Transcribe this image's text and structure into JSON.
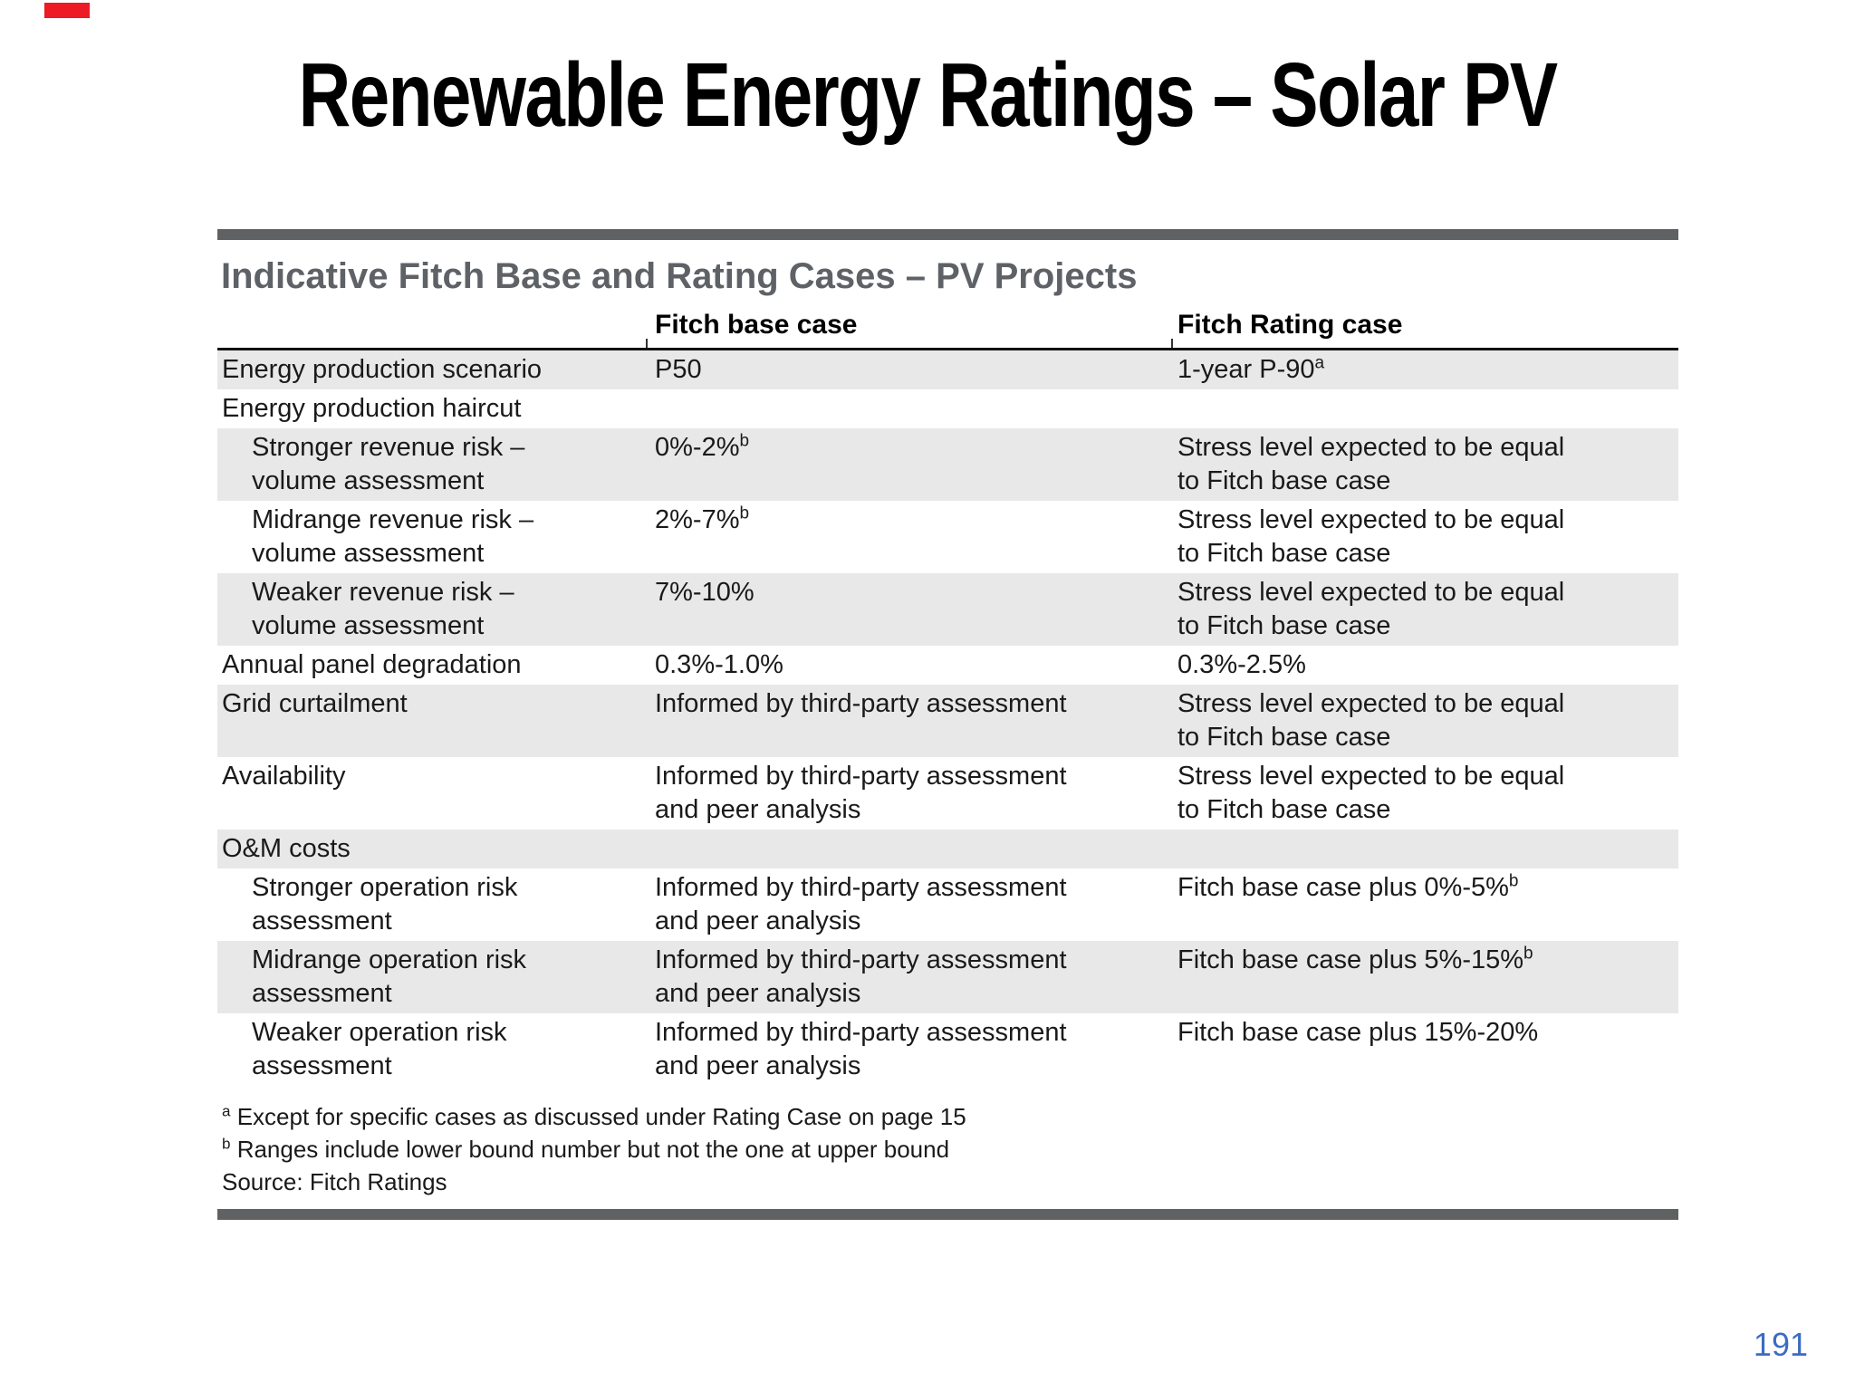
{
  "slide": {
    "title": "Renewable Energy Ratings – Solar PV",
    "page_number": "191"
  },
  "table": {
    "title": "Indicative Fitch Base and Rating Cases – PV Projects",
    "columns": [
      "",
      "Fitch base case",
      "Fitch Rating case"
    ],
    "rows": [
      {
        "label": "Energy production scenario",
        "indent": false,
        "shaded": true,
        "base": "P50",
        "base_sup": "",
        "rating": "1-year P-90",
        "rating_sup": "a"
      },
      {
        "label": "Energy production haircut",
        "indent": false,
        "shaded": false,
        "base": "",
        "base_sup": "",
        "rating": "",
        "rating_sup": ""
      },
      {
        "label": "Stronger revenue risk –\nvolume assessment",
        "indent": true,
        "shaded": true,
        "base": "0%-2%",
        "base_sup": "b",
        "rating": "Stress level expected to be equal\nto Fitch base case",
        "rating_sup": ""
      },
      {
        "label": "Midrange revenue risk –\nvolume assessment",
        "indent": true,
        "shaded": false,
        "base": "2%-7%",
        "base_sup": "b",
        "rating": "Stress level expected to be equal\nto Fitch base case",
        "rating_sup": ""
      },
      {
        "label": "Weaker revenue risk –\nvolume assessment",
        "indent": true,
        "shaded": true,
        "base": "7%-10%",
        "base_sup": "",
        "rating": "Stress level expected to be equal\nto Fitch base case",
        "rating_sup": ""
      },
      {
        "label": "Annual panel degradation",
        "indent": false,
        "shaded": false,
        "base": "0.3%-1.0%",
        "base_sup": "",
        "rating": "0.3%-2.5%",
        "rating_sup": ""
      },
      {
        "label": "Grid curtailment",
        "indent": false,
        "shaded": true,
        "base": "Informed by third-party assessment",
        "base_sup": "",
        "rating": "Stress level expected to be equal\nto Fitch base case",
        "rating_sup": ""
      },
      {
        "label": "Availability",
        "indent": false,
        "shaded": false,
        "base": "Informed by third-party assessment\nand peer analysis",
        "base_sup": "",
        "rating": "Stress level expected to be equal\nto Fitch base case",
        "rating_sup": ""
      },
      {
        "label": "O&M costs",
        "indent": false,
        "shaded": true,
        "base": "",
        "base_sup": "",
        "rating": "",
        "rating_sup": ""
      },
      {
        "label": "Stronger operation risk\nassessment",
        "indent": true,
        "shaded": false,
        "base": "Informed by third-party assessment\nand peer analysis",
        "base_sup": "",
        "rating": "Fitch base case plus 0%-5%",
        "rating_sup": "b"
      },
      {
        "label": "Midrange operation risk\nassessment",
        "indent": true,
        "shaded": true,
        "base": "Informed by third-party assessment\nand peer analysis",
        "base_sup": "",
        "rating": "Fitch base case plus 5%-15%",
        "rating_sup": "b"
      },
      {
        "label": "Weaker operation risk\nassessment",
        "indent": true,
        "shaded": false,
        "base": "Informed by third-party assessment\nand peer analysis",
        "base_sup": "",
        "rating": "Fitch base case plus 15%-20%",
        "rating_sup": ""
      }
    ],
    "footnotes": [
      {
        "sup": "a",
        "text": "Except for specific cases as discussed under Rating Case on page 15"
      },
      {
        "sup": "b",
        "text": "Ranges include lower bound number but not the one at upper bound"
      }
    ],
    "source": "Source: Fitch Ratings"
  },
  "colors": {
    "accent_red": "#ed1b23",
    "bar_gray": "#5f6163",
    "row_shade": "#e8e8e8",
    "table_title_gray": "#5e6266",
    "page_number_blue": "#3c6cc0"
  }
}
